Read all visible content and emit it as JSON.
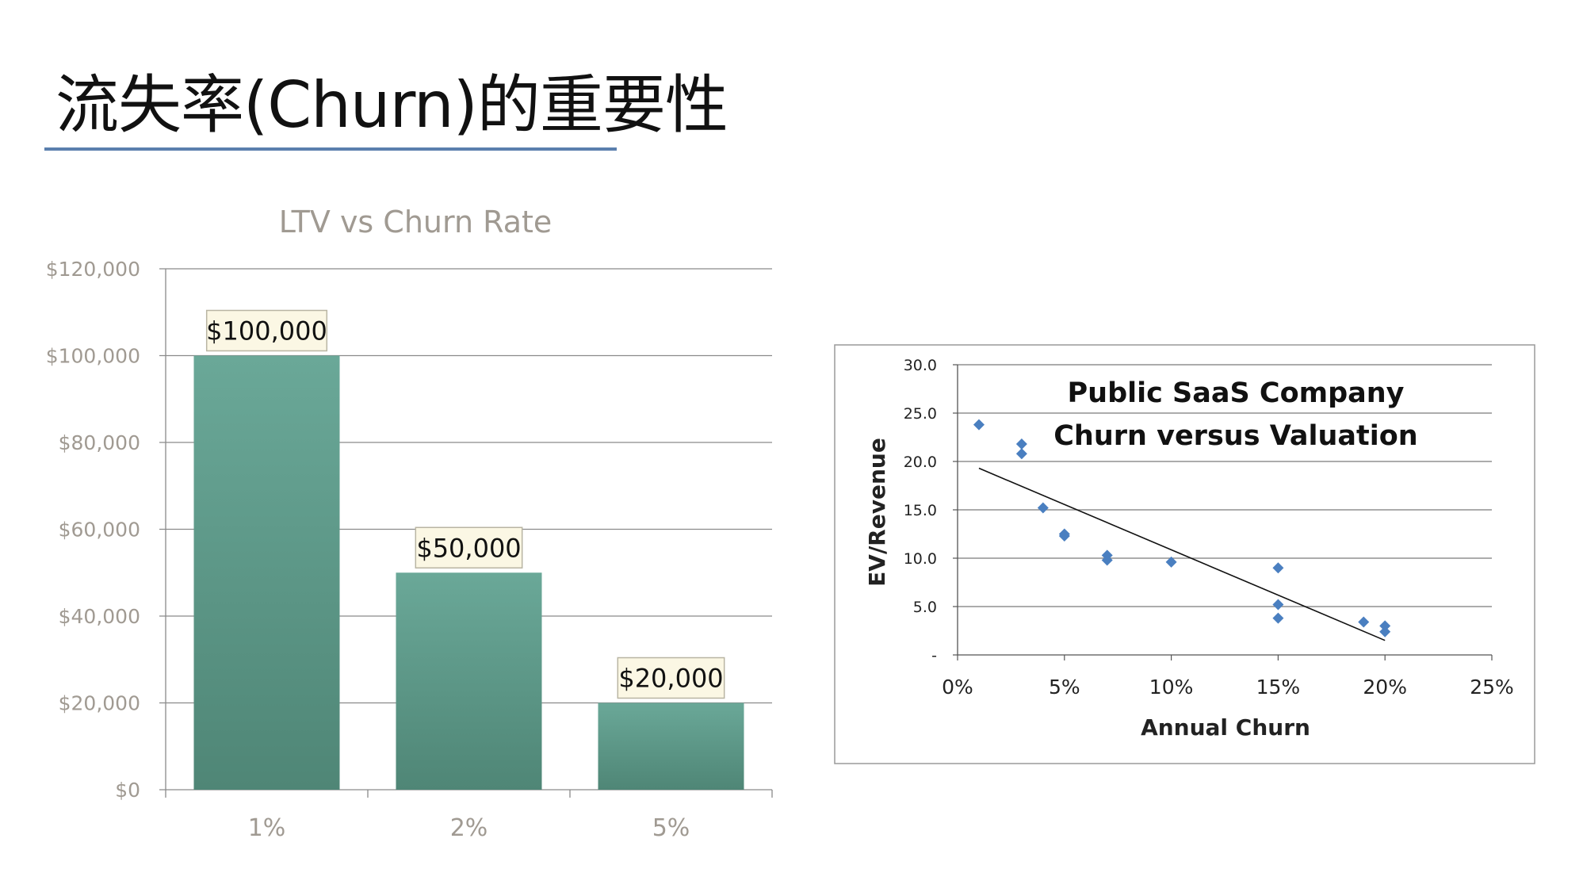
{
  "slide": {
    "title": "流失率(Churn)的重要性"
  },
  "colors": {
    "bar_top": "#6aa898",
    "bar_bottom": "#4f8676",
    "axis_text": "#a09a92",
    "marker": "#4a7fc0",
    "underline": "#5a7fae"
  },
  "chart_data": [
    {
      "type": "bar",
      "title": "LTV vs Churn Rate",
      "categories": [
        "1%",
        "2%",
        "5%"
      ],
      "values": [
        100000,
        50000,
        20000
      ],
      "data_labels": [
        "$100,000",
        "$50,000",
        "$20,000"
      ],
      "ylim": [
        0,
        120000
      ],
      "yticks": [
        0,
        20000,
        40000,
        60000,
        80000,
        100000,
        120000
      ],
      "ytick_labels": [
        "$0",
        "$20,000",
        "$40,000",
        "$60,000",
        "$80,000",
        "$100,000",
        "$120,000"
      ],
      "grid": true,
      "xlabel": "",
      "ylabel": ""
    },
    {
      "type": "scatter",
      "title_lines": [
        "Public SaaS Company",
        "Churn versus Valuation"
      ],
      "xlabel": "Annual Churn",
      "ylabel": "EV/Revenue",
      "xlim": [
        0,
        25
      ],
      "ylim": [
        0,
        30
      ],
      "xticks": [
        0,
        5,
        10,
        15,
        20,
        25
      ],
      "xtick_labels": [
        "0%",
        "5%",
        "10%",
        "15%",
        "20%",
        "25%"
      ],
      "yticks": [
        0,
        5,
        10,
        15,
        20,
        25,
        30
      ],
      "ytick_labels": [
        "-",
        "5.0",
        "10.0",
        "15.0",
        "20.0",
        "25.0",
        "30.0"
      ],
      "points": [
        {
          "x": 1,
          "y": 23.8
        },
        {
          "x": 3,
          "y": 21.8
        },
        {
          "x": 3,
          "y": 20.8
        },
        {
          "x": 4,
          "y": 15.2
        },
        {
          "x": 5,
          "y": 12.5
        },
        {
          "x": 5,
          "y": 12.3
        },
        {
          "x": 7,
          "y": 10.3
        },
        {
          "x": 7,
          "y": 9.8
        },
        {
          "x": 10,
          "y": 9.6
        },
        {
          "x": 15,
          "y": 9.0
        },
        {
          "x": 15,
          "y": 5.2
        },
        {
          "x": 15,
          "y": 3.8
        },
        {
          "x": 19,
          "y": 3.4
        },
        {
          "x": 20,
          "y": 3.0
        },
        {
          "x": 20,
          "y": 2.4
        }
      ],
      "trendline": {
        "x": [
          1,
          20
        ],
        "y": [
          19.3,
          1.5
        ]
      },
      "grid": true
    }
  ]
}
